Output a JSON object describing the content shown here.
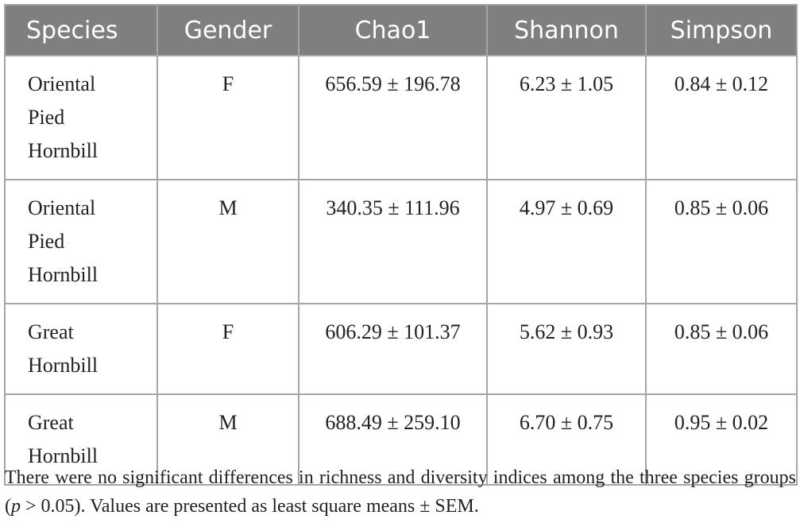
{
  "table": {
    "header": [
      "Species",
      "Gender",
      "Chao1",
      "Shannon",
      "Simpson"
    ],
    "rows": [
      [
        "Oriental Pied Hornbill",
        "F",
        "656.59 ± 196.78",
        "6.23 ± 1.05",
        "0.84 ± 0.12"
      ],
      [
        "Oriental Pied Hornbill",
        "M",
        "340.35 ± 111.96",
        "4.97 ± 0.69",
        "0.85 ± 0.06"
      ],
      [
        "Great Hornbill",
        "F",
        "606.29 ± 101.37",
        "5.62 ± 0.93",
        "0.85 ± 0.06"
      ],
      [
        "Great Hornbill",
        "M",
        "688.49 ± 259.10",
        "6.70 ± 0.75",
        "0.95 ± 0.02"
      ]
    ]
  },
  "footnote": [
    "There were no significant differences in richness and diversity indices among the three species groups (",
    "p",
    " > 0.05). Values are presented as least square means ± SEM."
  ]
}
